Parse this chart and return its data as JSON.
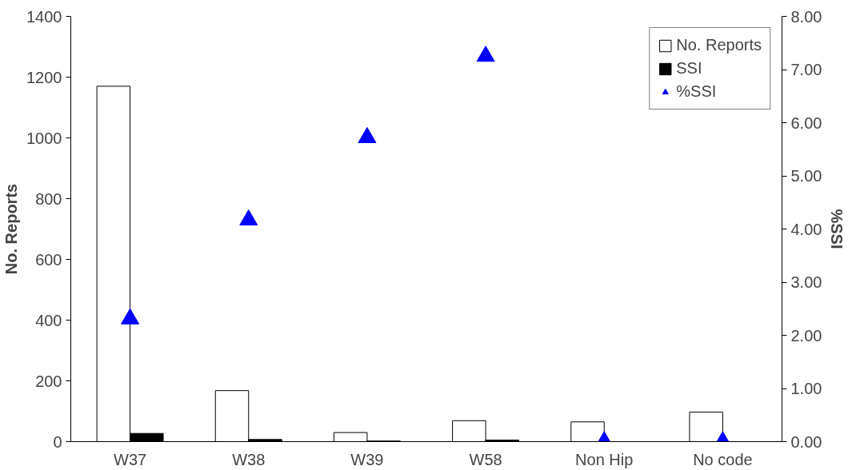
{
  "chart_data": {
    "type": "bar",
    "ylabel": "No. Reports",
    "y2label": "%SSI",
    "categories": [
      "W37",
      "W38",
      "W39",
      "W58",
      "Non Hip",
      "No code"
    ],
    "series": [
      {
        "name": "No. Reports",
        "color": "#ffffff",
        "values": [
          1170,
          168,
          30,
          69,
          65,
          97
        ]
      },
      {
        "name": "SSI",
        "color": "#000000",
        "values": [
          27,
          7,
          2,
          5,
          0,
          0
        ]
      },
      {
        "name": "%SSI",
        "type": "scatter",
        "axis": "y2",
        "color": "#0000ff",
        "marker": "triangle",
        "values": [
          2.31,
          4.17,
          5.72,
          7.25,
          0,
          0
        ]
      }
    ],
    "ylim": [
      0,
      1400
    ],
    "yticks": [
      0,
      200,
      400,
      600,
      800,
      1000,
      1200,
      1400
    ],
    "y2lim": [
      0,
      8
    ],
    "y2ticks": [
      {
        "value": 0,
        "label": "0.00"
      },
      {
        "value": 1,
        "label": "1.00"
      },
      {
        "value": 2,
        "label": "2.00"
      },
      {
        "value": 3,
        "label": "3.00"
      },
      {
        "value": 4,
        "label": "4.00"
      },
      {
        "value": 5,
        "label": "5.00"
      },
      {
        "value": 6,
        "label": "6.00"
      },
      {
        "value": 7,
        "label": "7.00"
      },
      {
        "value": 8,
        "label": "8.00"
      }
    ],
    "legend": "top right",
    "grid": false
  }
}
